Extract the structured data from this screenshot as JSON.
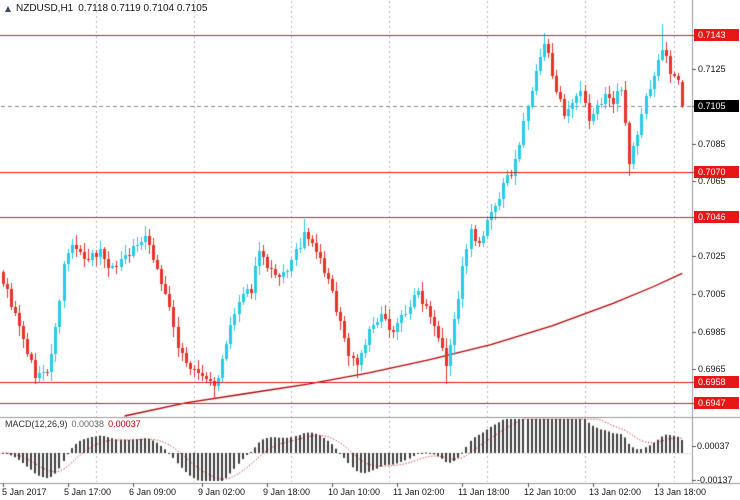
{
  "header": {
    "symbol_period": "NZDUSD,H1",
    "ohlc_text": "0.7118 0.7119 0.7104 0.7105"
  },
  "chart_data": {
    "type": "candlestick",
    "symbol": "NZDUSD",
    "timeframe": "H1",
    "candle_count": 168,
    "y_ticks": [
      0.7125,
      0.7085,
      0.7065,
      0.7025,
      0.7005,
      0.6985,
      0.6965
    ],
    "levels": [
      0.7143,
      0.707,
      0.7046,
      0.6958,
      0.6947
    ],
    "current_price": 0.7105,
    "last_candle": [
      0.7118,
      0.7119,
      0.7104,
      0.7105
    ],
    "x_ticks": [
      {
        "i": 0,
        "label": "5 Jan 2017"
      },
      {
        "i": 16,
        "label": "5 Jan 17:00"
      },
      {
        "i": 32,
        "label": "6 Jan 09:00"
      },
      {
        "i": 49,
        "label": "9 Jan 02:00"
      },
      {
        "i": 65,
        "label": "9 Jan 18:00"
      },
      {
        "i": 81,
        "label": "10 Jan 10:00"
      },
      {
        "i": 97,
        "label": "11 Jan 02:00"
      },
      {
        "i": 113,
        "label": "11 Jan 18:00"
      },
      {
        "i": 129,
        "label": "12 Jan 10:00"
      },
      {
        "i": 145,
        "label": "13 Jan 02:00"
      },
      {
        "i": 161,
        "label": "13 Jan 18:00"
      }
    ],
    "day_separators": [
      23,
      47,
      71,
      95,
      119,
      143,
      165
    ],
    "price_path": [
      [
        0,
        0.7012
      ],
      [
        2,
        0.7
      ],
      [
        5,
        0.698
      ],
      [
        8,
        0.6962
      ],
      [
        11,
        0.6963
      ],
      [
        13,
        0.6985
      ],
      [
        15,
        0.702
      ],
      [
        17,
        0.7032
      ],
      [
        20,
        0.7022
      ],
      [
        24,
        0.7028
      ],
      [
        27,
        0.7018
      ],
      [
        30,
        0.7026
      ],
      [
        33,
        0.703
      ],
      [
        35,
        0.7038
      ],
      [
        37,
        0.7024
      ],
      [
        40,
        0.7005
      ],
      [
        43,
        0.6978
      ],
      [
        46,
        0.6965
      ],
      [
        49,
        0.6961
      ],
      [
        52,
        0.6956
      ],
      [
        54,
        0.6968
      ],
      [
        56,
        0.6988
      ],
      [
        58,
        0.7
      ],
      [
        61,
        0.7008
      ],
      [
        63,
        0.703
      ],
      [
        65,
        0.7018
      ],
      [
        68,
        0.7012
      ],
      [
        71,
        0.7022
      ],
      [
        74,
        0.7036
      ],
      [
        77,
        0.7028
      ],
      [
        80,
        0.7012
      ],
      [
        83,
        0.699
      ],
      [
        85,
        0.6973
      ],
      [
        87,
        0.6968
      ],
      [
        90,
        0.6985
      ],
      [
        93,
        0.6992
      ],
      [
        96,
        0.6986
      ],
      [
        99,
        0.6996
      ],
      [
        102,
        0.7006
      ],
      [
        105,
        0.6995
      ],
      [
        108,
        0.6978
      ],
      [
        109,
        0.6968
      ],
      [
        111,
        0.699
      ],
      [
        113,
        0.7018
      ],
      [
        115,
        0.7038
      ],
      [
        117,
        0.703
      ],
      [
        119,
        0.7042
      ],
      [
        121,
        0.7052
      ],
      [
        123,
        0.7062
      ],
      [
        125,
        0.707
      ],
      [
        127,
        0.7085
      ],
      [
        129,
        0.7105
      ],
      [
        131,
        0.7122
      ],
      [
        133,
        0.7138
      ],
      [
        134,
        0.7132
      ],
      [
        136,
        0.7115
      ],
      [
        138,
        0.7098
      ],
      [
        140,
        0.7105
      ],
      [
        142,
        0.7112
      ],
      [
        144,
        0.7098
      ],
      [
        146,
        0.7104
      ],
      [
        148,
        0.7112
      ],
      [
        150,
        0.7106
      ],
      [
        152,
        0.7116
      ],
      [
        154,
        0.7076
      ],
      [
        156,
        0.709
      ],
      [
        158,
        0.711
      ],
      [
        160,
        0.7122
      ],
      [
        162,
        0.7136
      ],
      [
        164,
        0.7124
      ],
      [
        166,
        0.7118
      ],
      [
        167,
        0.7105
      ]
    ],
    "wick_high_overrides": [
      [
        35,
        0.7041
      ],
      [
        74,
        0.7045
      ],
      [
        133,
        0.7144
      ],
      [
        162,
        0.7149
      ]
    ],
    "wick_low_overrides": [
      [
        8,
        0.6957
      ],
      [
        52,
        0.6949
      ],
      [
        87,
        0.696
      ],
      [
        109,
        0.6957
      ],
      [
        154,
        0.7068
      ]
    ],
    "ma_points": [
      [
        30,
        0.694
      ],
      [
        45,
        0.6947
      ],
      [
        60,
        0.6952
      ],
      [
        75,
        0.6957
      ],
      [
        90,
        0.6963
      ],
      [
        105,
        0.697
      ],
      [
        120,
        0.6978
      ],
      [
        135,
        0.6988
      ],
      [
        150,
        0.7
      ],
      [
        160,
        0.7009
      ],
      [
        167,
        0.7016
      ]
    ],
    "macd": {
      "name": "MACD(12,26,9)",
      "value_main": "0.00038",
      "value_signal": "0.00037",
      "params": {
        "fast": 12,
        "slow": 26,
        "signal": 9
      },
      "ticks": [
        {
          "v": 0.00037,
          "label": "0.00037"
        },
        {
          "v": -0.00137,
          "label": "-0.00137"
        }
      ]
    }
  },
  "colors": {
    "bull": "#27cbe8",
    "bear": "#e8332a",
    "level_line": "#e81717",
    "level_badge": "#e81717",
    "current_badge": "#000000",
    "ma_line": "#b40000",
    "histogram": "#3f3f3f",
    "signal_line": "#c40000",
    "grid": "#b8b8b8",
    "separator": "#9a9a9a",
    "axis_text": "#141414",
    "background": "#ffffff"
  }
}
